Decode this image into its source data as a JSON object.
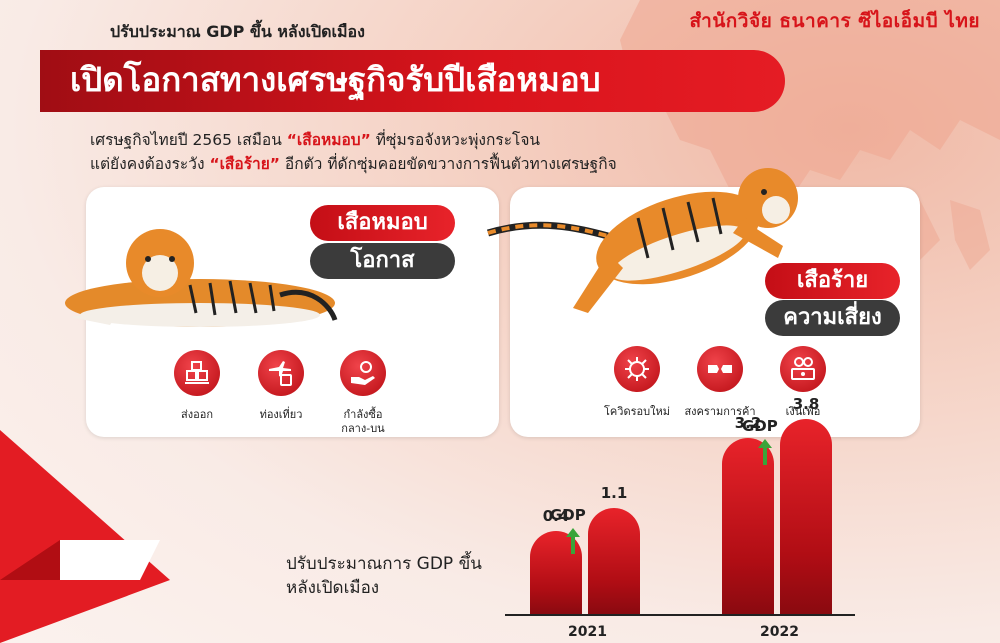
{
  "header": {
    "brand": "สำนักวิจัย ธนาคาร ซีไอเอ็มบี ไทย",
    "subtitle": "ปรับประมาณ GDP ขึ้น หลังเปิดเมือง",
    "title": "เปิดโอกาสทางเศรษฐกิจรับปีเสือหมอบ"
  },
  "intro": {
    "line1_a": "เศรษฐกิจไทยปี 2565 เสมือน ",
    "line1_hl": "“เสือหมอบ”",
    "line1_b": " ที่ซุ่มรอจังหวะพุ่งกระโจน",
    "line2_a": "แต่ยังคงต้องระวัง ",
    "line2_hl": "“เสือร้าย”",
    "line2_b": " อีกตัว ที่ดักซุ่มคอยขัดขวางการฟื้นตัวทางเศรษฐกิจ"
  },
  "left_card": {
    "tag_red": "เสือหมอบ",
    "tag_dark": "โอกาส",
    "items": [
      {
        "icon": "export-boxes-icon",
        "label": "ส่งออก"
      },
      {
        "icon": "tourism-plane-luggage-icon",
        "label": "ท่องเที่ยว"
      },
      {
        "icon": "hand-coins-icon",
        "label": "กำลังซื้อ\nกลาง-บน"
      }
    ]
  },
  "right_card": {
    "tag_red": "เสือร้าย",
    "tag_dark": "ความเสี่ยง",
    "items": [
      {
        "icon": "virus-icon",
        "label": "โควิดรอบใหม่"
      },
      {
        "icon": "trade-war-icon",
        "label": "สงครามการค้า"
      },
      {
        "icon": "money-inflation-icon",
        "label": "เงินเฟ้อ"
      }
    ]
  },
  "chart_data": {
    "type": "bar",
    "note_line1": "ปรับประมาณการ GDP ขึ้น",
    "note_line2": "หลังเปิดเมือง",
    "gdp_label": "GDP",
    "groups": [
      {
        "year": "2021",
        "before": 0.4,
        "after": 1.1,
        "before_label": "0.4",
        "after_label": "1.1"
      },
      {
        "year": "2022",
        "before": 3.2,
        "after": 3.8,
        "before_label": "3.2",
        "after_label": "3.8"
      }
    ],
    "colors": {
      "bar": "#d7141a",
      "arrow": "#3aa43a"
    }
  }
}
